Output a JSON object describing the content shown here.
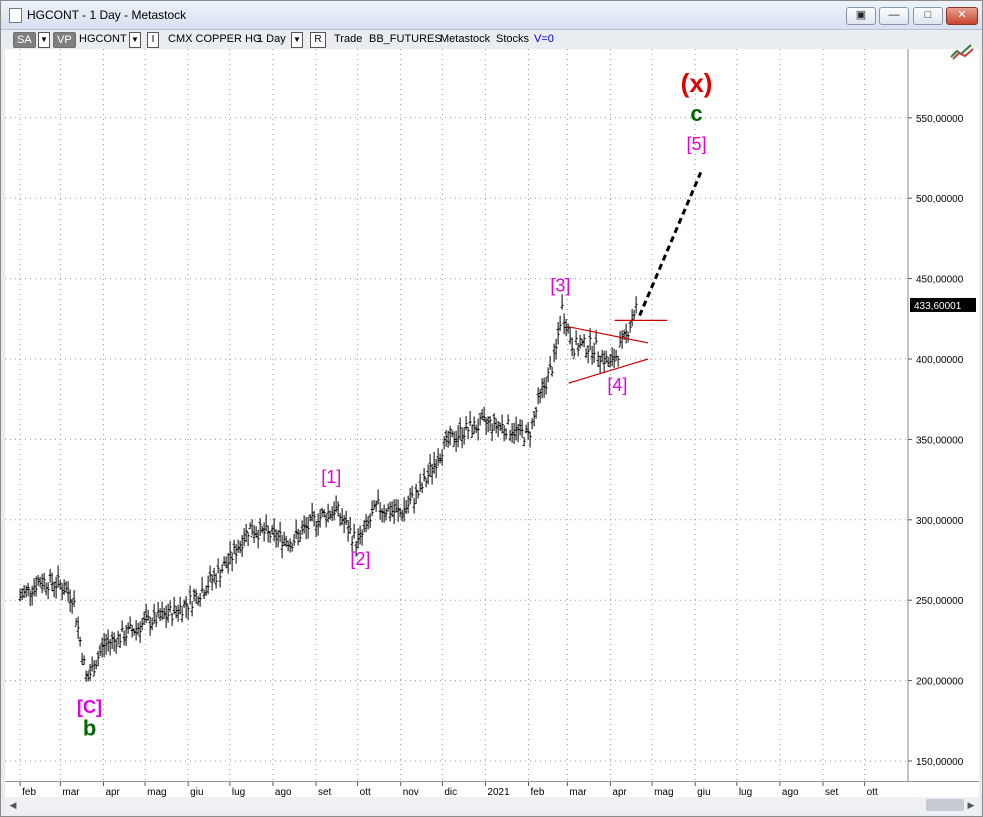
{
  "window": {
    "title": "HGCONT - 1 Day - Metastock"
  },
  "toolbar": {
    "sa_label": "SA",
    "vp_label": "VP",
    "symbol": "HGCONT",
    "i_label": "I",
    "description": "CMX COPPER HG",
    "period": "1 Day",
    "r_label": "R",
    "trade": "Trade",
    "source": "BB_FUTURES",
    "app": "Metastock",
    "kind": "Stocks",
    "volume": "V=0"
  },
  "chart_data": {
    "type": "ohlc",
    "y_ticks": [
      "550,00000",
      "500,00000",
      "450,00000",
      "400,00000",
      "350,00000",
      "300,00000",
      "250,00000",
      "200,00000",
      "150,00000"
    ],
    "y_tick_values": [
      550,
      500,
      450,
      400,
      350,
      300,
      250,
      200,
      150
    ],
    "x_ticks": [
      "feb",
      "mar",
      "apr",
      "mag",
      "giu",
      "lug",
      "ago",
      "set",
      "ott",
      "nov",
      "dic",
      "2021",
      "feb",
      "mar",
      "apr",
      "mag",
      "giu",
      "lug",
      "ago",
      "set",
      "ott"
    ],
    "last_price_label": "433,60001",
    "last_price": 433.6,
    "price_path": [
      [
        "2020-02-01",
        252
      ],
      [
        "2020-02-15",
        262
      ],
      [
        "2020-03-01",
        260
      ],
      [
        "2020-03-10",
        252
      ],
      [
        "2020-03-20",
        200
      ],
      [
        "2020-04-01",
        222
      ],
      [
        "2020-04-15",
        228
      ],
      [
        "2020-05-01",
        236
      ],
      [
        "2020-05-15",
        240
      ],
      [
        "2020-06-01",
        248
      ],
      [
        "2020-06-15",
        260
      ],
      [
        "2020-07-01",
        275
      ],
      [
        "2020-07-15",
        295
      ],
      [
        "2020-08-01",
        290
      ],
      [
        "2020-08-15",
        287
      ],
      [
        "2020-09-01",
        300
      ],
      [
        "2020-09-15",
        307
      ],
      [
        "2020-10-01",
        285
      ],
      [
        "2020-10-15",
        308
      ],
      [
        "2020-11-01",
        304
      ],
      [
        "2020-11-15",
        318
      ],
      [
        "2020-12-01",
        345
      ],
      [
        "2020-12-15",
        355
      ],
      [
        "2021-01-01",
        360
      ],
      [
        "2021-01-15",
        358
      ],
      [
        "2021-02-01",
        352
      ],
      [
        "2021-02-10",
        378
      ],
      [
        "2021-02-20",
        400
      ],
      [
        "2021-02-25",
        432
      ],
      [
        "2021-03-05",
        408
      ],
      [
        "2021-03-20",
        408
      ],
      [
        "2021-04-01",
        396
      ],
      [
        "2021-04-10",
        410
      ],
      [
        "2021-04-20",
        433.6
      ]
    ],
    "projection": {
      "from": [
        "2021-04-22",
        427
      ],
      "to": [
        "2021-06-05",
        516
      ]
    },
    "wave_labels": [
      {
        "text": "[C]",
        "color": "#e000e0"
      },
      {
        "text": "b",
        "color": "#006600"
      },
      {
        "text": "[1]",
        "color": "#e000e0"
      },
      {
        "text": "[2]",
        "color": "#e000e0"
      },
      {
        "text": "[3]",
        "color": "#e000e0"
      },
      {
        "text": "[4]",
        "color": "#e000e0"
      },
      {
        "text": "[5]",
        "color": "#e000e0"
      },
      {
        "text": "c",
        "color": "#006600"
      },
      {
        "text": "(x)",
        "color": "#e00000"
      }
    ],
    "grid": true,
    "colors": {
      "bars": "#000000",
      "triangle": "#cc0000",
      "projection": "#000000",
      "label_box": "#000000"
    }
  }
}
